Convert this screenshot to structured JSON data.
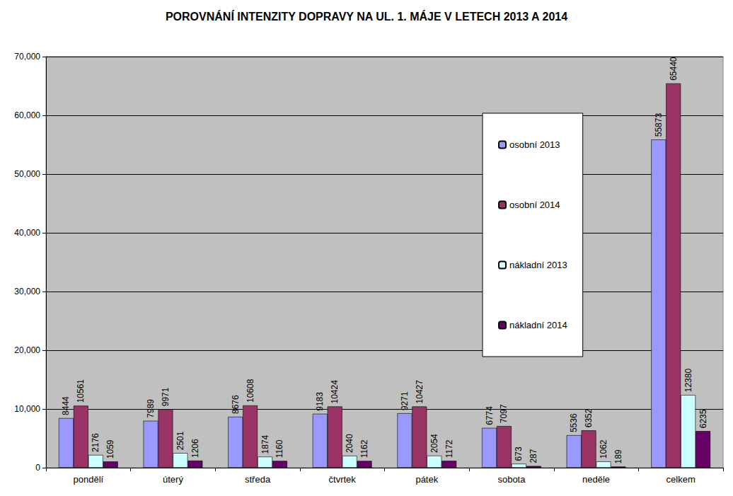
{
  "chart_data": {
    "type": "bar",
    "title": "POROVNÁNÍ INTENZITY DOPRAVY NA UL. 1. MÁJE V LETECH 2013 A 2014",
    "categories": [
      "pondělí",
      "úterý",
      "středa",
      "čtvrtek",
      "pátek",
      "sobota",
      "neděle",
      "celkem"
    ],
    "series": [
      {
        "name": "osobní 2013",
        "color": "#9999ff",
        "values": [
          8444,
          7989,
          8676,
          9183,
          9271,
          6774,
          5536,
          55873
        ]
      },
      {
        "name": "osobní 2014",
        "color": "#993366",
        "values": [
          10561,
          9971,
          10608,
          10424,
          10427,
          7097,
          6352,
          65440
        ]
      },
      {
        "name": "nákladní 2013",
        "color": "#ccffff",
        "values": [
          2176,
          2501,
          1874,
          2040,
          2054,
          673,
          1062,
          12380
        ]
      },
      {
        "name": "nákladní 2014",
        "color": "#660066",
        "values": [
          1059,
          1206,
          1160,
          1162,
          1172,
          287,
          189,
          6235
        ]
      }
    ],
    "ylim": [
      0,
      70000
    ],
    "yticks": [
      0,
      10000,
      20000,
      30000,
      40000,
      50000,
      60000,
      70000
    ],
    "grid": true,
    "legend": "right",
    "data_labels": true
  }
}
